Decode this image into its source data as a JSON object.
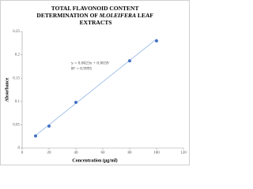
{
  "chart_data": {
    "type": "scatter",
    "title_lines": [
      [
        "TOTAL FLAVONOID CONTENT"
      ],
      [
        "DETERMINATION OF",
        "M.OLEIFERA",
        "LEAF"
      ],
      [
        "EXTRACTS"
      ]
    ],
    "x_label": "Concentration (µg/ml)",
    "y_label": "Absorbance",
    "x": [
      10,
      20,
      40,
      80,
      100
    ],
    "series": [
      {
        "color": "#4472c4",
        "values": [
          0.026,
          0.047,
          0.098,
          0.187,
          0.23
        ]
      }
    ],
    "trendline": {
      "slope": 0.0023,
      "intercept": 0.0039,
      "color": "#8fb4e3",
      "label": "y = 0.0023x + 0.0039",
      "r2_label": "R² = 0.9995"
    },
    "xlim": [
      0,
      120
    ],
    "xticks": [
      0,
      20,
      40,
      60,
      80,
      100,
      120
    ],
    "ylim": [
      0,
      0.25
    ],
    "yticks": [
      0,
      0.05,
      0.1,
      0.15,
      0.2,
      0.25
    ],
    "grid": false
  }
}
